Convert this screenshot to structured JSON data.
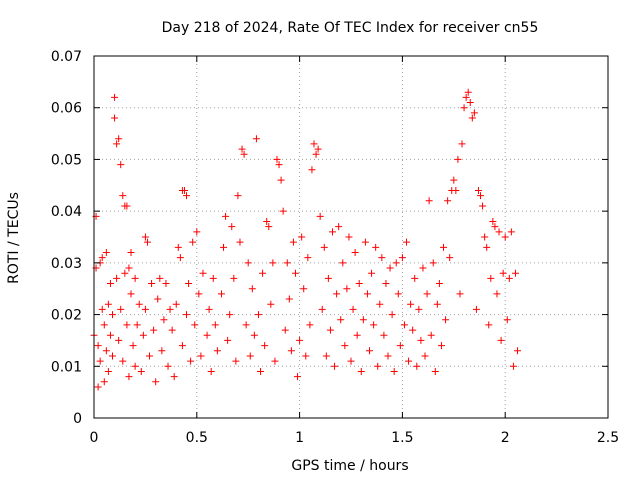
{
  "chart_data": {
    "type": "scatter",
    "title": "Day 218 of 2024, Rate Of TEC Index for receiver cn55",
    "xlabel": "GPS time / hours",
    "ylabel": "ROTI / TECUs",
    "xlim": [
      0,
      2.5
    ],
    "ylim": [
      0,
      0.07
    ],
    "xticks": [
      0,
      0.5,
      1,
      1.5,
      2,
      2.5
    ],
    "xtick_labels": [
      "0",
      "0.5",
      "1",
      "1.5",
      "2",
      "2.5"
    ],
    "yticks": [
      0,
      0.01,
      0.02,
      0.03,
      0.04,
      0.05,
      0.06,
      0.07
    ],
    "ytick_labels": [
      "0",
      "0.01",
      "0.02",
      "0.03",
      "0.04",
      "0.05",
      "0.06",
      "0.07"
    ],
    "grid": true,
    "marker": "+",
    "color": "#ff0000",
    "series": [
      {
        "name": "ROTI",
        "points": [
          [
            0.0,
            0.016
          ],
          [
            0.01,
            0.039
          ],
          [
            0.01,
            0.029
          ],
          [
            0.02,
            0.006
          ],
          [
            0.02,
            0.014
          ],
          [
            0.03,
            0.03
          ],
          [
            0.03,
            0.011
          ],
          [
            0.04,
            0.031
          ],
          [
            0.04,
            0.021
          ],
          [
            0.05,
            0.007
          ],
          [
            0.05,
            0.018
          ],
          [
            0.06,
            0.032
          ],
          [
            0.06,
            0.013
          ],
          [
            0.07,
            0.022
          ],
          [
            0.07,
            0.009
          ],
          [
            0.08,
            0.026
          ],
          [
            0.08,
            0.016
          ],
          [
            0.09,
            0.012
          ],
          [
            0.09,
            0.02
          ],
          [
            0.1,
            0.062
          ],
          [
            0.1,
            0.058
          ],
          [
            0.11,
            0.053
          ],
          [
            0.11,
            0.027
          ],
          [
            0.12,
            0.054
          ],
          [
            0.12,
            0.015
          ],
          [
            0.13,
            0.049
          ],
          [
            0.13,
            0.021
          ],
          [
            0.14,
            0.043
          ],
          [
            0.14,
            0.011
          ],
          [
            0.15,
            0.041
          ],
          [
            0.15,
            0.028
          ],
          [
            0.16,
            0.041
          ],
          [
            0.16,
            0.018
          ],
          [
            0.17,
            0.029
          ],
          [
            0.17,
            0.008
          ],
          [
            0.18,
            0.032
          ],
          [
            0.18,
            0.024
          ],
          [
            0.19,
            0.014
          ],
          [
            0.2,
            0.027
          ],
          [
            0.2,
            0.01
          ],
          [
            0.21,
            0.018
          ],
          [
            0.22,
            0.022
          ],
          [
            0.23,
            0.009
          ],
          [
            0.24,
            0.016
          ],
          [
            0.25,
            0.035
          ],
          [
            0.25,
            0.021
          ],
          [
            0.26,
            0.034
          ],
          [
            0.27,
            0.012
          ],
          [
            0.28,
            0.026
          ],
          [
            0.29,
            0.017
          ],
          [
            0.3,
            0.007
          ],
          [
            0.31,
            0.023
          ],
          [
            0.32,
            0.027
          ],
          [
            0.33,
            0.013
          ],
          [
            0.34,
            0.019
          ],
          [
            0.35,
            0.026
          ],
          [
            0.36,
            0.01
          ],
          [
            0.37,
            0.021
          ],
          [
            0.38,
            0.017
          ],
          [
            0.39,
            0.008
          ],
          [
            0.4,
            0.022
          ],
          [
            0.41,
            0.033
          ],
          [
            0.42,
            0.031
          ],
          [
            0.43,
            0.044
          ],
          [
            0.43,
            0.014
          ],
          [
            0.44,
            0.044
          ],
          [
            0.45,
            0.043
          ],
          [
            0.45,
            0.02
          ],
          [
            0.46,
            0.026
          ],
          [
            0.47,
            0.011
          ],
          [
            0.48,
            0.034
          ],
          [
            0.49,
            0.018
          ],
          [
            0.5,
            0.036
          ],
          [
            0.51,
            0.024
          ],
          [
            0.52,
            0.012
          ],
          [
            0.53,
            0.028
          ],
          [
            0.55,
            0.016
          ],
          [
            0.56,
            0.021
          ],
          [
            0.57,
            0.009
          ],
          [
            0.58,
            0.027
          ],
          [
            0.59,
            0.018
          ],
          [
            0.6,
            0.013
          ],
          [
            0.62,
            0.024
          ],
          [
            0.63,
            0.033
          ],
          [
            0.64,
            0.039
          ],
          [
            0.65,
            0.015
          ],
          [
            0.66,
            0.02
          ],
          [
            0.67,
            0.037
          ],
          [
            0.68,
            0.027
          ],
          [
            0.69,
            0.011
          ],
          [
            0.7,
            0.043
          ],
          [
            0.71,
            0.034
          ],
          [
            0.72,
            0.052
          ],
          [
            0.73,
            0.051
          ],
          [
            0.74,
            0.018
          ],
          [
            0.75,
            0.03
          ],
          [
            0.76,
            0.012
          ],
          [
            0.77,
            0.025
          ],
          [
            0.78,
            0.016
          ],
          [
            0.79,
            0.054
          ],
          [
            0.8,
            0.02
          ],
          [
            0.81,
            0.009
          ],
          [
            0.82,
            0.028
          ],
          [
            0.83,
            0.014
          ],
          [
            0.84,
            0.038
          ],
          [
            0.85,
            0.037
          ],
          [
            0.86,
            0.022
          ],
          [
            0.87,
            0.03
          ],
          [
            0.88,
            0.011
          ],
          [
            0.89,
            0.05
          ],
          [
            0.9,
            0.049
          ],
          [
            0.91,
            0.046
          ],
          [
            0.92,
            0.04
          ],
          [
            0.93,
            0.017
          ],
          [
            0.94,
            0.03
          ],
          [
            0.95,
            0.023
          ],
          [
            0.96,
            0.013
          ],
          [
            0.97,
            0.034
          ],
          [
            0.98,
            0.028
          ],
          [
            0.99,
            0.008
          ],
          [
            1.0,
            0.015
          ],
          [
            1.01,
            0.035
          ],
          [
            1.02,
            0.025
          ],
          [
            1.03,
            0.012
          ],
          [
            1.04,
            0.031
          ],
          [
            1.05,
            0.018
          ],
          [
            1.06,
            0.048
          ],
          [
            1.07,
            0.053
          ],
          [
            1.08,
            0.051
          ],
          [
            1.09,
            0.052
          ],
          [
            1.1,
            0.039
          ],
          [
            1.11,
            0.021
          ],
          [
            1.12,
            0.033
          ],
          [
            1.13,
            0.012
          ],
          [
            1.14,
            0.027
          ],
          [
            1.15,
            0.017
          ],
          [
            1.16,
            0.036
          ],
          [
            1.17,
            0.01
          ],
          [
            1.18,
            0.024
          ],
          [
            1.19,
            0.037
          ],
          [
            1.2,
            0.019
          ],
          [
            1.21,
            0.03
          ],
          [
            1.22,
            0.014
          ],
          [
            1.23,
            0.025
          ],
          [
            1.24,
            0.035
          ],
          [
            1.25,
            0.011
          ],
          [
            1.26,
            0.021
          ],
          [
            1.27,
            0.032
          ],
          [
            1.28,
            0.016
          ],
          [
            1.29,
            0.026
          ],
          [
            1.3,
            0.009
          ],
          [
            1.31,
            0.019
          ],
          [
            1.32,
            0.034
          ],
          [
            1.33,
            0.024
          ],
          [
            1.34,
            0.013
          ],
          [
            1.35,
            0.028
          ],
          [
            1.36,
            0.018
          ],
          [
            1.37,
            0.033
          ],
          [
            1.38,
            0.01
          ],
          [
            1.39,
            0.022
          ],
          [
            1.4,
            0.031
          ],
          [
            1.41,
            0.016
          ],
          [
            1.42,
            0.026
          ],
          [
            1.43,
            0.012
          ],
          [
            1.44,
            0.029
          ],
          [
            1.45,
            0.02
          ],
          [
            1.46,
            0.009
          ],
          [
            1.47,
            0.03
          ],
          [
            1.48,
            0.024
          ],
          [
            1.49,
            0.014
          ],
          [
            1.5,
            0.031
          ],
          [
            1.51,
            0.018
          ],
          [
            1.52,
            0.034
          ],
          [
            1.53,
            0.011
          ],
          [
            1.54,
            0.022
          ],
          [
            1.55,
            0.017
          ],
          [
            1.56,
            0.027
          ],
          [
            1.57,
            0.01
          ],
          [
            1.58,
            0.021
          ],
          [
            1.59,
            0.015
          ],
          [
            1.6,
            0.029
          ],
          [
            1.61,
            0.012
          ],
          [
            1.62,
            0.024
          ],
          [
            1.63,
            0.042
          ],
          [
            1.64,
            0.016
          ],
          [
            1.65,
            0.03
          ],
          [
            1.66,
            0.009
          ],
          [
            1.67,
            0.022
          ],
          [
            1.68,
            0.026
          ],
          [
            1.69,
            0.014
          ],
          [
            1.7,
            0.033
          ],
          [
            1.71,
            0.019
          ],
          [
            1.72,
            0.042
          ],
          [
            1.73,
            0.031
          ],
          [
            1.74,
            0.044
          ],
          [
            1.75,
            0.046
          ],
          [
            1.76,
            0.044
          ],
          [
            1.77,
            0.05
          ],
          [
            1.78,
            0.024
          ],
          [
            1.79,
            0.053
          ],
          [
            1.8,
            0.06
          ],
          [
            1.81,
            0.062
          ],
          [
            1.82,
            0.063
          ],
          [
            1.83,
            0.061
          ],
          [
            1.84,
            0.058
          ],
          [
            1.85,
            0.059
          ],
          [
            1.86,
            0.021
          ],
          [
            1.87,
            0.044
          ],
          [
            1.88,
            0.043
          ],
          [
            1.89,
            0.041
          ],
          [
            1.9,
            0.035
          ],
          [
            1.91,
            0.033
          ],
          [
            1.92,
            0.018
          ],
          [
            1.93,
            0.027
          ],
          [
            1.94,
            0.038
          ],
          [
            1.95,
            0.037
          ],
          [
            1.96,
            0.024
          ],
          [
            1.97,
            0.036
          ],
          [
            1.98,
            0.015
          ],
          [
            1.99,
            0.028
          ],
          [
            2.0,
            0.035
          ],
          [
            2.01,
            0.019
          ],
          [
            2.02,
            0.027
          ],
          [
            2.03,
            0.036
          ],
          [
            2.04,
            0.01
          ],
          [
            2.05,
            0.028
          ],
          [
            2.06,
            0.013
          ]
        ]
      }
    ]
  }
}
